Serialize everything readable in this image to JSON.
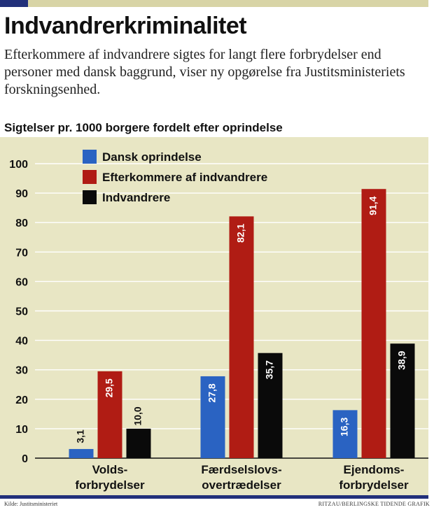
{
  "header": {
    "title": "Indvandrerkriminalitet",
    "intro": "Efterkommere af indvandrere sigtes for langt flere forbrydelser end personer med dansk baggrund, viser ny opgørelse fra Justitsministeriets forskningsenhed.",
    "subtitle": "Sigtelser pr. 1000 borgere fordelt efter oprindelse"
  },
  "footer": {
    "source": "Kilde: Justitsministeriet",
    "credit": "RITZAU/BERLINGSKE TIDENDE GRAFIK"
  },
  "colors": {
    "background": "#e8e6c4",
    "grid": "#ffffff",
    "accent": "#22307a"
  },
  "chart_data": {
    "type": "bar",
    "title": "Sigtelser pr. 1000 borgere fordelt efter oprindelse",
    "categories": [
      [
        "Volds-",
        "forbrydelser"
      ],
      [
        "Færdselslovs-",
        "overtrædelser"
      ],
      [
        "Ejendoms-",
        "forbrydelser"
      ]
    ],
    "series": [
      {
        "name": "Dansk oprindelse",
        "color": "#2a63c2",
        "values": [
          3.1,
          27.8,
          16.3
        ],
        "labels": [
          "3,1",
          "27,8",
          "16,3"
        ]
      },
      {
        "name": "Efterkommere af indvandrere",
        "color": "#b01c14",
        "values": [
          29.5,
          82.1,
          91.4
        ],
        "labels": [
          "29,5",
          "82,1",
          "91,4"
        ]
      },
      {
        "name": "Indvandrere",
        "color": "#0a0a0a",
        "values": [
          10.0,
          35.7,
          38.9
        ],
        "labels": [
          "10,0",
          "35,7",
          "38,9"
        ]
      }
    ],
    "ylim": [
      0,
      100
    ],
    "yticks": [
      0,
      10,
      20,
      30,
      40,
      50,
      60,
      70,
      80,
      90,
      100
    ],
    "grid": true,
    "legend": "top-left"
  }
}
